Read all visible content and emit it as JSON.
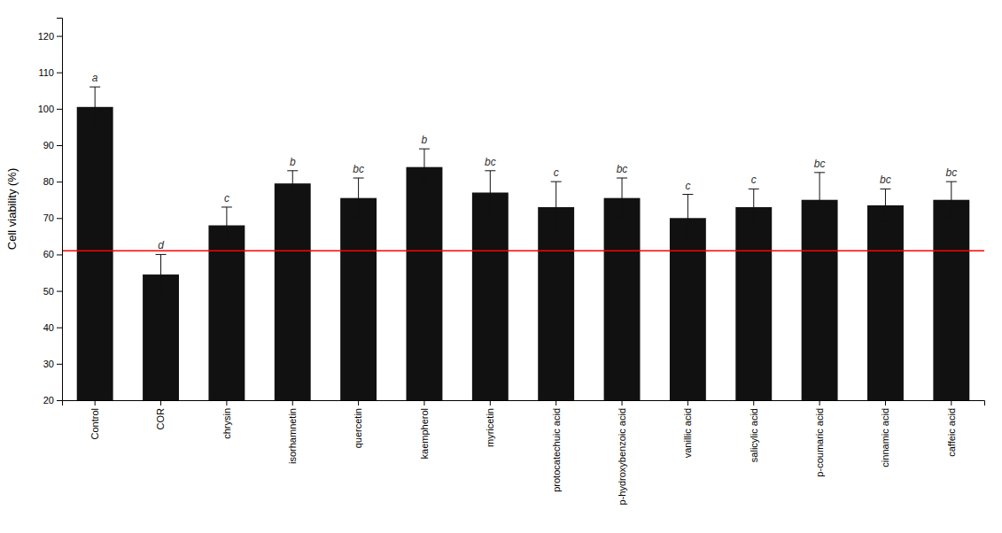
{
  "chart_data": {
    "type": "bar",
    "categories": [
      "Control",
      "COR",
      "chrysin",
      "isorhamnetin",
      "quercetin",
      "kaempherol",
      "myricetin",
      "protocatechuic acid",
      "p-hydroxybenzoic acid",
      "vanillic acid",
      "salicylic acid",
      "p-coumaric acid",
      "cinnamic acid",
      "caffeic acid"
    ],
    "values": [
      100.5,
      54.5,
      68.0,
      79.5,
      75.5,
      84.0,
      77.0,
      73.0,
      75.5,
      70.0,
      73.0,
      75.0,
      73.5,
      75.0
    ],
    "errors": [
      5.5,
      5.5,
      5.0,
      3.5,
      5.5,
      5.0,
      6.0,
      7.0,
      5.5,
      6.5,
      5.0,
      7.5,
      4.5,
      5.0
    ],
    "annotations": [
      "a",
      "d",
      "c",
      "b",
      "bc",
      "b",
      "bc",
      "c",
      "bc",
      "c",
      "c",
      "bc",
      "bc",
      "bc"
    ],
    "color": "#111111",
    "ylabel": "Cell viability (%)",
    "ylim": [
      20,
      125
    ],
    "yticks": [
      20,
      30,
      40,
      50,
      60,
      70,
      80,
      90,
      100,
      110,
      120
    ],
    "reference_line": {
      "value": 61.0,
      "color": "red"
    },
    "grid": false
  }
}
